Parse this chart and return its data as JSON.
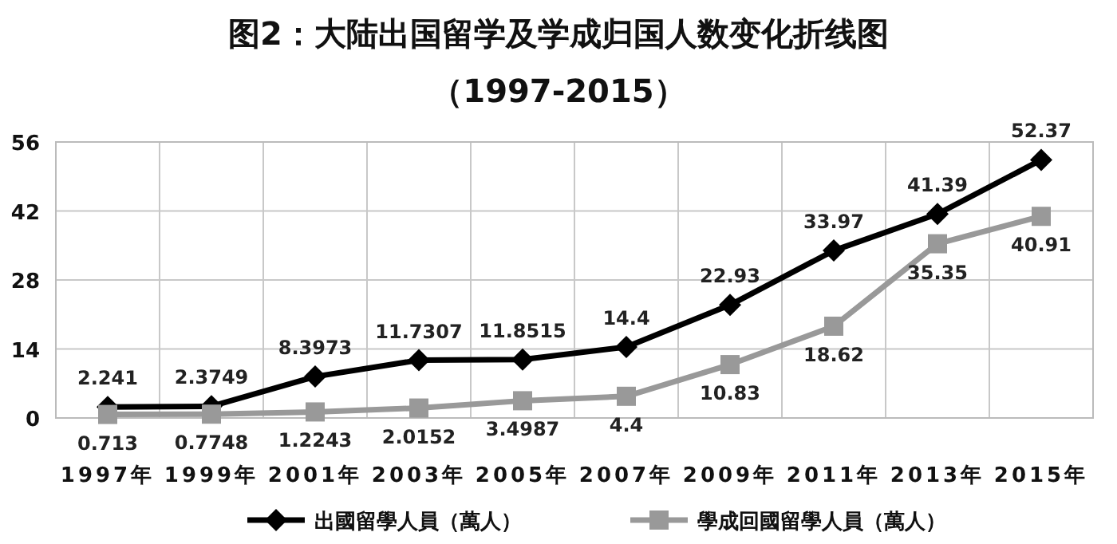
{
  "chart_data": {
    "type": "line",
    "title": "图2：大陆出国留学及学成归国人数变化折线图",
    "subtitle": "（1997-2015）",
    "categories": [
      "1997年",
      "1999年",
      "2001年",
      "2003年",
      "2005年",
      "2007年",
      "2009年",
      "2011年",
      "2013年",
      "2015年"
    ],
    "series": [
      {
        "name": "出國留學人員（萬人）",
        "color": "#000000",
        "marker": "diamond",
        "values": [
          2.241,
          2.3749,
          8.3973,
          11.7307,
          11.8515,
          14.4,
          22.93,
          33.97,
          41.39,
          52.37
        ]
      },
      {
        "name": "學成回國留學人員（萬人）",
        "color": "#999999",
        "marker": "square",
        "values": [
          0.713,
          0.7748,
          1.2243,
          2.0152,
          3.4987,
          4.4,
          10.83,
          18.62,
          35.35,
          40.91
        ]
      }
    ],
    "ylim": [
      0,
      56
    ],
    "yticks": [
      0,
      14,
      28,
      42,
      56
    ],
    "grid": true,
    "legend": "bottom",
    "data_labels": true,
    "line_style": "solid"
  }
}
